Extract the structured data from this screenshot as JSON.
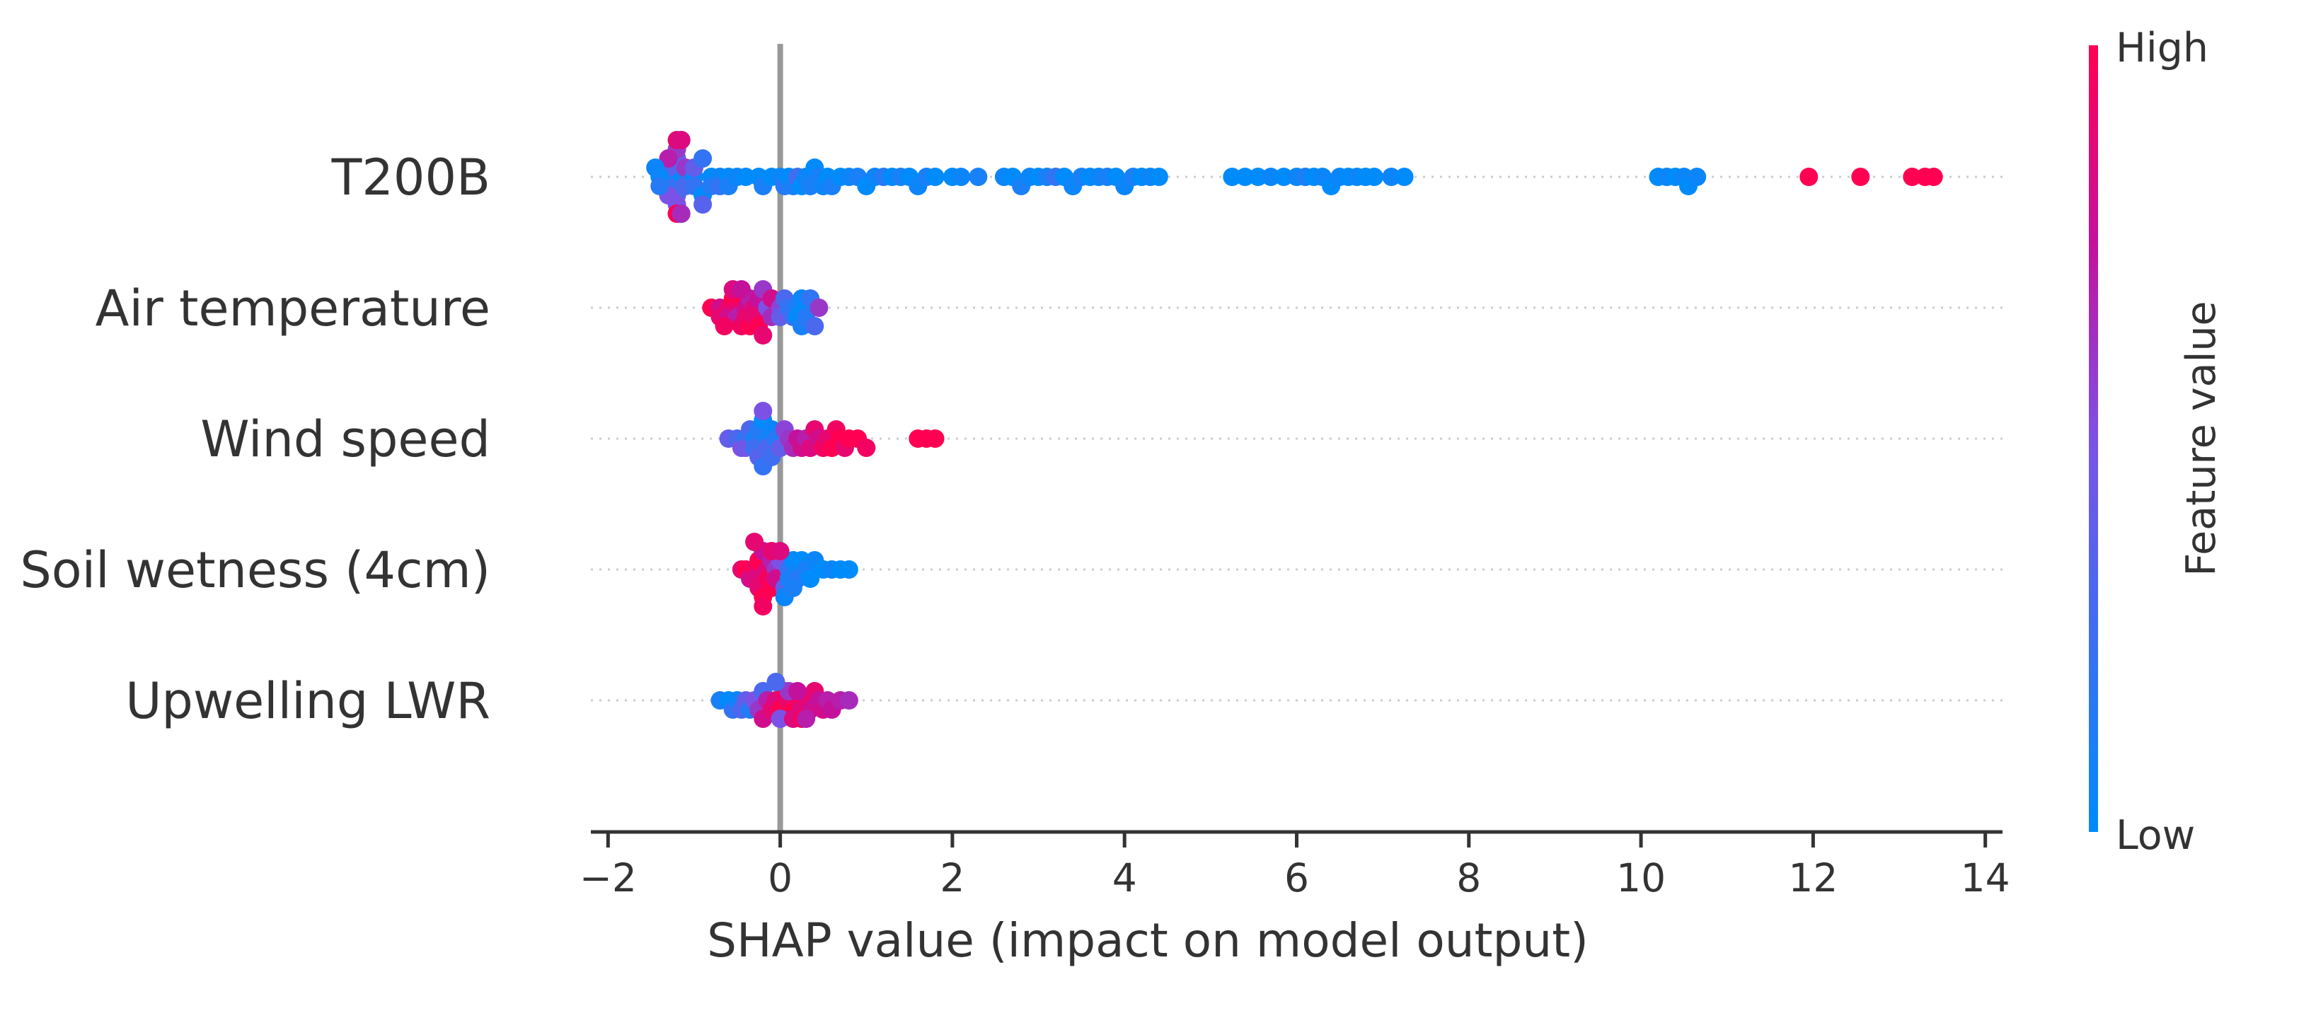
{
  "chart_data": {
    "type": "scatter",
    "subtype": "shap-beeswarm",
    "xlabel": "SHAP value (impact on model output)",
    "xlim": [
      -2.2,
      14.2
    ],
    "xticks": [
      -2,
      0,
      2,
      4,
      6,
      8,
      10,
      12,
      14
    ],
    "xtick_labels": [
      "−2",
      "0",
      "2",
      "4",
      "6",
      "8",
      "10",
      "12",
      "14"
    ],
    "zero_line": 0,
    "colorbar": {
      "title": "Feature value",
      "high_label": "High",
      "low_label": "Low",
      "low_color": "#008bfb",
      "high_color": "#ff0052"
    },
    "features": [
      {
        "name": "T200B",
        "points": [
          [
            -1.2,
            0.0
          ],
          [
            -1.2,
            0.1
          ],
          [
            -1.2,
            0.2
          ],
          [
            -1.2,
            0.3
          ],
          [
            -1.2,
            0.4
          ],
          [
            -1.2,
            0.5
          ],
          [
            -1.2,
            0.6
          ],
          [
            -1.2,
            0.8
          ],
          [
            -1.2,
            0.9
          ],
          [
            -1.2,
            1.0
          ],
          [
            -1.15,
            0.05
          ],
          [
            -1.15,
            0.25
          ],
          [
            -1.15,
            0.45
          ],
          [
            -1.15,
            0.65
          ],
          [
            -1.15,
            0.85
          ],
          [
            -1.3,
            0.0
          ],
          [
            -1.3,
            0.2
          ],
          [
            -1.3,
            0.35
          ],
          [
            -1.3,
            0.5
          ],
          [
            -1.3,
            0.7
          ],
          [
            -1.1,
            0.1
          ],
          [
            -1.1,
            0.3
          ],
          [
            -1.1,
            0.6
          ],
          [
            -1.4,
            0.0
          ],
          [
            -1.4,
            0.15
          ],
          [
            -1.45,
            0.05
          ],
          [
            -1.0,
            0.0
          ],
          [
            -1.0,
            0.2
          ],
          [
            -1.0,
            0.4
          ],
          [
            -0.9,
            0.0
          ],
          [
            -0.9,
            0.2
          ],
          [
            -0.9,
            0.35
          ],
          [
            -0.8,
            0.0
          ],
          [
            -0.8,
            0.15
          ],
          [
            -0.7,
            0.05
          ],
          [
            -0.7,
            0.2
          ],
          [
            -0.6,
            0.0
          ],
          [
            -0.6,
            0.1
          ],
          [
            -0.5,
            0.05
          ],
          [
            -0.4,
            0.0
          ],
          [
            -0.25,
            0.0
          ],
          [
            -0.2,
            0.1
          ],
          [
            -0.1,
            0.0
          ],
          [
            0.0,
            0.05
          ],
          [
            0.05,
            0.15
          ],
          [
            0.1,
            0.0
          ],
          [
            0.15,
            0.1
          ],
          [
            0.2,
            0.25
          ],
          [
            0.25,
            0.0
          ],
          [
            0.3,
            0.05
          ],
          [
            0.35,
            0.1
          ],
          [
            0.4,
            0.0
          ],
          [
            0.45,
            0.1
          ],
          [
            0.5,
            0.05
          ],
          [
            0.55,
            0.0
          ],
          [
            0.6,
            0.1
          ],
          [
            0.7,
            0.0
          ],
          [
            0.8,
            0.05
          ],
          [
            0.9,
            0.1
          ],
          [
            1.0,
            0.0
          ],
          [
            1.1,
            0.05
          ],
          [
            1.2,
            0.15
          ],
          [
            1.3,
            0.0
          ],
          [
            1.4,
            0.1
          ],
          [
            1.5,
            0.0
          ],
          [
            1.6,
            0.05
          ],
          [
            1.7,
            0.1
          ],
          [
            1.8,
            0.0
          ],
          [
            2.0,
            0.0
          ],
          [
            2.1,
            0.05
          ],
          [
            2.3,
            0.1
          ],
          [
            2.6,
            0.05
          ],
          [
            2.7,
            0.0
          ],
          [
            2.8,
            0.1
          ],
          [
            2.9,
            0.05
          ],
          [
            3.0,
            0.0
          ],
          [
            3.1,
            0.1
          ],
          [
            3.2,
            0.2
          ],
          [
            3.3,
            0.0
          ],
          [
            3.4,
            0.05
          ],
          [
            3.5,
            0.1
          ],
          [
            3.6,
            0.0
          ],
          [
            3.7,
            0.05
          ],
          [
            3.8,
            0.1
          ],
          [
            3.9,
            0.0
          ],
          [
            4.0,
            0.05
          ],
          [
            4.1,
            0.1
          ],
          [
            4.2,
            0.0
          ],
          [
            4.3,
            0.05
          ],
          [
            4.4,
            0.0
          ],
          [
            5.25,
            0.0
          ],
          [
            5.4,
            0.0
          ],
          [
            5.55,
            0.0
          ],
          [
            5.7,
            0.05
          ],
          [
            5.85,
            0.0
          ],
          [
            6.0,
            0.05
          ],
          [
            6.1,
            0.1
          ],
          [
            6.2,
            0.0
          ],
          [
            6.3,
            0.05
          ],
          [
            6.4,
            0.0
          ],
          [
            6.5,
            0.05
          ],
          [
            6.6,
            0.0
          ],
          [
            6.7,
            0.05
          ],
          [
            6.8,
            0.0
          ],
          [
            6.9,
            0.0
          ],
          [
            7.1,
            0.05
          ],
          [
            7.25,
            0.0
          ],
          [
            10.2,
            0.0
          ],
          [
            10.3,
            0.05
          ],
          [
            10.4,
            0.0
          ],
          [
            10.5,
            0.05
          ],
          [
            10.55,
            0.0
          ],
          [
            10.65,
            0.05
          ],
          [
            11.95,
            1.0
          ],
          [
            12.55,
            1.0
          ],
          [
            13.15,
            1.0
          ],
          [
            13.3,
            1.0
          ],
          [
            13.4,
            1.0
          ]
        ]
      },
      {
        "name": "Air temperature",
        "points": [
          [
            -0.8,
            1.0
          ],
          [
            -0.7,
            0.8
          ],
          [
            -0.7,
            0.9
          ],
          [
            -0.6,
            0.9
          ],
          [
            -0.6,
            0.8
          ],
          [
            -0.55,
            1.0
          ],
          [
            -0.5,
            0.9
          ],
          [
            -0.5,
            0.7
          ],
          [
            -0.45,
            1.0
          ],
          [
            -0.45,
            0.95
          ],
          [
            -0.4,
            0.8
          ],
          [
            -0.4,
            0.9
          ],
          [
            -0.35,
            0.7
          ],
          [
            -0.35,
            1.0
          ],
          [
            -0.3,
            0.85
          ],
          [
            -0.3,
            0.9
          ],
          [
            -0.25,
            0.75
          ],
          [
            -0.25,
            1.0
          ],
          [
            -0.2,
            0.6
          ],
          [
            -0.2,
            0.9
          ],
          [
            -0.15,
            0.5
          ],
          [
            -0.1,
            0.65
          ],
          [
            -0.1,
            0.8
          ],
          [
            0.0,
            0.55
          ],
          [
            0.0,
            0.4
          ],
          [
            0.05,
            0.3
          ],
          [
            0.1,
            0.2
          ],
          [
            0.15,
            0.25
          ],
          [
            0.2,
            0.1
          ],
          [
            0.2,
            0.0
          ],
          [
            0.25,
            0.05
          ],
          [
            0.25,
            0.1
          ],
          [
            0.3,
            0.0
          ],
          [
            0.3,
            0.15
          ],
          [
            0.35,
            0.2
          ],
          [
            0.4,
            0.3
          ],
          [
            0.45,
            0.6
          ],
          [
            -0.65,
            0.95
          ],
          [
            -0.55,
            0.85
          ],
          [
            -0.45,
            0.75
          ]
        ]
      },
      {
        "name": "Wind speed",
        "points": [
          [
            -0.6,
            0.4
          ],
          [
            -0.5,
            0.3
          ],
          [
            -0.45,
            0.5
          ],
          [
            -0.4,
            0.2
          ],
          [
            -0.4,
            0.45
          ],
          [
            -0.35,
            0.3
          ],
          [
            -0.3,
            0.1
          ],
          [
            -0.3,
            0.25
          ],
          [
            -0.25,
            0.15
          ],
          [
            -0.25,
            0.35
          ],
          [
            -0.2,
            0.0
          ],
          [
            -0.2,
            0.2
          ],
          [
            -0.2,
            0.5
          ],
          [
            -0.15,
            0.1
          ],
          [
            -0.15,
            0.3
          ],
          [
            -0.1,
            0.05
          ],
          [
            -0.1,
            0.25
          ],
          [
            -0.05,
            0.15
          ],
          [
            0.0,
            0.4
          ],
          [
            0.05,
            0.55
          ],
          [
            0.1,
            0.6
          ],
          [
            0.15,
            0.65
          ],
          [
            0.2,
            0.75
          ],
          [
            0.25,
            0.8
          ],
          [
            0.3,
            0.7
          ],
          [
            0.35,
            0.85
          ],
          [
            0.4,
            0.9
          ],
          [
            0.45,
            0.8
          ],
          [
            0.5,
            0.95
          ],
          [
            0.55,
            0.9
          ],
          [
            0.6,
            1.0
          ],
          [
            0.65,
            0.95
          ],
          [
            0.7,
            1.0
          ],
          [
            0.75,
            0.9
          ],
          [
            0.8,
            1.0
          ],
          [
            0.9,
            1.0
          ],
          [
            1.0,
            0.95
          ],
          [
            1.6,
            1.0
          ],
          [
            1.7,
            1.0
          ],
          [
            1.8,
            1.0
          ]
        ]
      },
      {
        "name": "Soil wetness (4cm)",
        "points": [
          [
            -0.45,
            0.9
          ],
          [
            -0.4,
            1.0
          ],
          [
            -0.35,
            0.8
          ],
          [
            -0.3,
            0.95
          ],
          [
            -0.3,
            0.85
          ],
          [
            -0.25,
            1.0
          ],
          [
            -0.25,
            0.9
          ],
          [
            -0.2,
            0.75
          ],
          [
            -0.2,
            1.0
          ],
          [
            -0.15,
            0.85
          ],
          [
            -0.15,
            0.95
          ],
          [
            -0.1,
            0.7
          ],
          [
            -0.1,
            1.0
          ],
          [
            -0.05,
            0.6
          ],
          [
            -0.05,
            0.8
          ],
          [
            0.0,
            0.5
          ],
          [
            0.05,
            0.35
          ],
          [
            0.1,
            0.2
          ],
          [
            0.1,
            0.1
          ],
          [
            0.15,
            0.0
          ],
          [
            0.2,
            0.05
          ],
          [
            0.2,
            0.15
          ],
          [
            0.25,
            0.0
          ],
          [
            0.3,
            0.1
          ],
          [
            0.35,
            0.0
          ],
          [
            0.4,
            0.05
          ],
          [
            0.5,
            0.0
          ],
          [
            0.6,
            0.05
          ],
          [
            0.7,
            0.0
          ],
          [
            0.8,
            0.0
          ],
          [
            -0.3,
            0.9
          ],
          [
            -0.2,
            0.95
          ],
          [
            -0.1,
            0.9
          ],
          [
            0.0,
            0.85
          ],
          [
            0.05,
            0.05
          ],
          [
            0.15,
            0.1
          ]
        ]
      },
      {
        "name": "Upwelling LWR",
        "points": [
          [
            -0.7,
            0.1
          ],
          [
            -0.6,
            0.0
          ],
          [
            -0.55,
            0.2
          ],
          [
            -0.5,
            0.05
          ],
          [
            -0.45,
            0.3
          ],
          [
            -0.4,
            0.4
          ],
          [
            -0.35,
            0.15
          ],
          [
            -0.3,
            0.5
          ],
          [
            -0.25,
            0.6
          ],
          [
            -0.2,
            0.3
          ],
          [
            -0.2,
            0.8
          ],
          [
            -0.15,
            0.7
          ],
          [
            -0.1,
            0.9
          ],
          [
            -0.05,
            0.85
          ],
          [
            0.0,
            1.0
          ],
          [
            0.05,
            0.95
          ],
          [
            0.1,
            0.9
          ],
          [
            0.15,
            1.0
          ],
          [
            0.2,
            0.95
          ],
          [
            0.25,
            0.85
          ],
          [
            0.3,
            0.9
          ],
          [
            0.35,
            0.8
          ],
          [
            0.4,
            0.9
          ],
          [
            0.45,
            0.75
          ],
          [
            0.5,
            0.8
          ],
          [
            0.55,
            0.7
          ],
          [
            0.6,
            0.75
          ],
          [
            0.7,
            0.7
          ],
          [
            0.8,
            0.65
          ],
          [
            0.1,
            0.6
          ],
          [
            0.0,
            0.5
          ],
          [
            -0.05,
            0.3
          ],
          [
            0.15,
            0.85
          ],
          [
            0.2,
            0.75
          ],
          [
            0.25,
            0.95
          ],
          [
            0.3,
            0.7
          ]
        ]
      }
    ]
  }
}
